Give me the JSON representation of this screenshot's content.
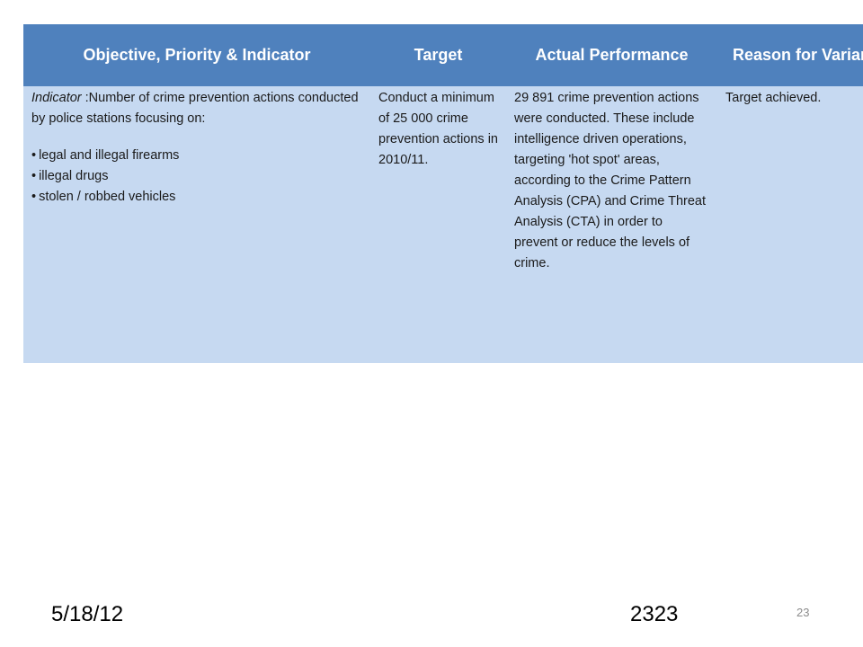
{
  "table": {
    "headers": [
      "Objective, Priority & Indicator",
      "Target",
      "Actual Performance",
      "Reason for Variance"
    ],
    "row": {
      "indicator_label": "Indicator",
      "indicator_text": " :Number of crime prevention actions conducted by police stations focusing on:",
      "bullets": [
        "legal and illegal firearms",
        "illegal drugs",
        "stolen / robbed vehicles"
      ],
      "target": "Conduct a minimum of 25 000 crime prevention actions in 2010/11.",
      "actual_performance": "29 891 crime prevention actions were conducted. These include intelligence driven operations, targeting 'hot spot' areas, according to the Crime Pattern Analysis (CPA) and Crime Threat Analysis (CTA) in order to prevent or reduce the levels of crime.",
      "reason_for_variance": "Target achieved."
    }
  },
  "footer": {
    "date": "5/18/12",
    "center_text": "2323",
    "slide_number": "23"
  },
  "colors": {
    "header_bg": "#4f81bd",
    "row_bg": "#c6d9f1"
  }
}
